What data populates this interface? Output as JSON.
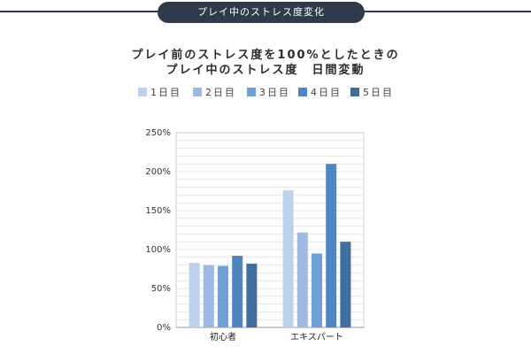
{
  "header": {
    "title": "プレイ中のストレス度変化"
  },
  "chart_data": {
    "type": "bar",
    "title_lines": [
      "プレイ前のストレス度を100%としたときの",
      "プレイ中のストレス度　日間変動"
    ],
    "categories": [
      "初心者",
      "エキスパート"
    ],
    "series": [
      {
        "name": "1日目",
        "values": [
          83,
          176
        ],
        "color": "#bcd1ea"
      },
      {
        "name": "2日目",
        "values": [
          80,
          122
        ],
        "color": "#9dbbe0"
      },
      {
        "name": "3日目",
        "values": [
          79,
          95
        ],
        "color": "#6fa0d6"
      },
      {
        "name": "4日目",
        "values": [
          92,
          210
        ],
        "color": "#4f86c0"
      },
      {
        "name": "5日目",
        "values": [
          82,
          110
        ],
        "color": "#3f6e9f"
      }
    ],
    "y_ticks": [
      "0%",
      "50%",
      "100%",
      "150%",
      "200%",
      "250%"
    ],
    "y_tick_values": [
      0,
      50,
      100,
      150,
      200,
      250
    ],
    "ylim": [
      0,
      250
    ],
    "grid": true,
    "legend_position": "top-center"
  }
}
